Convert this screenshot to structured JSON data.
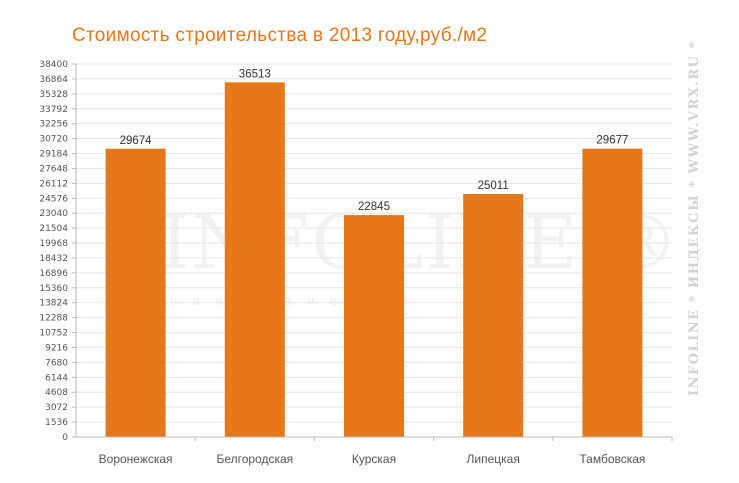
{
  "chart_data": {
    "type": "bar",
    "title": "Стоимость  строительства  в  2013  году,руб./м2",
    "categories": [
      "Воронежская",
      "Белгородская",
      "Курская",
      "Липецкая",
      "Тамбовская"
    ],
    "values": [
      29674,
      36513,
      22845,
      25011,
      29677
    ],
    "value_labels": [
      "29674",
      "36513",
      "22845",
      "25011",
      "29677"
    ],
    "yticks": [
      0,
      1536,
      3072,
      4608,
      6144,
      7680,
      9216,
      10752,
      12288,
      13824,
      15360,
      16896,
      18432,
      19968,
      21504,
      23040,
      24576,
      26112,
      27648,
      29184,
      30720,
      32256,
      33792,
      35328,
      36864,
      38400
    ],
    "ylim": [
      0,
      38400
    ],
    "xlabel": "",
    "ylabel": "",
    "grid": true,
    "legend": "none",
    "bar_color": "#e8761a",
    "watermark": {
      "main": "INFOLINE ®",
      "sub": "н а я   и   д а   н е   и м о",
      "side": "INFOLINE  *  ИНДЕКСЫ  *  WWW.VRX.RU  *"
    }
  }
}
